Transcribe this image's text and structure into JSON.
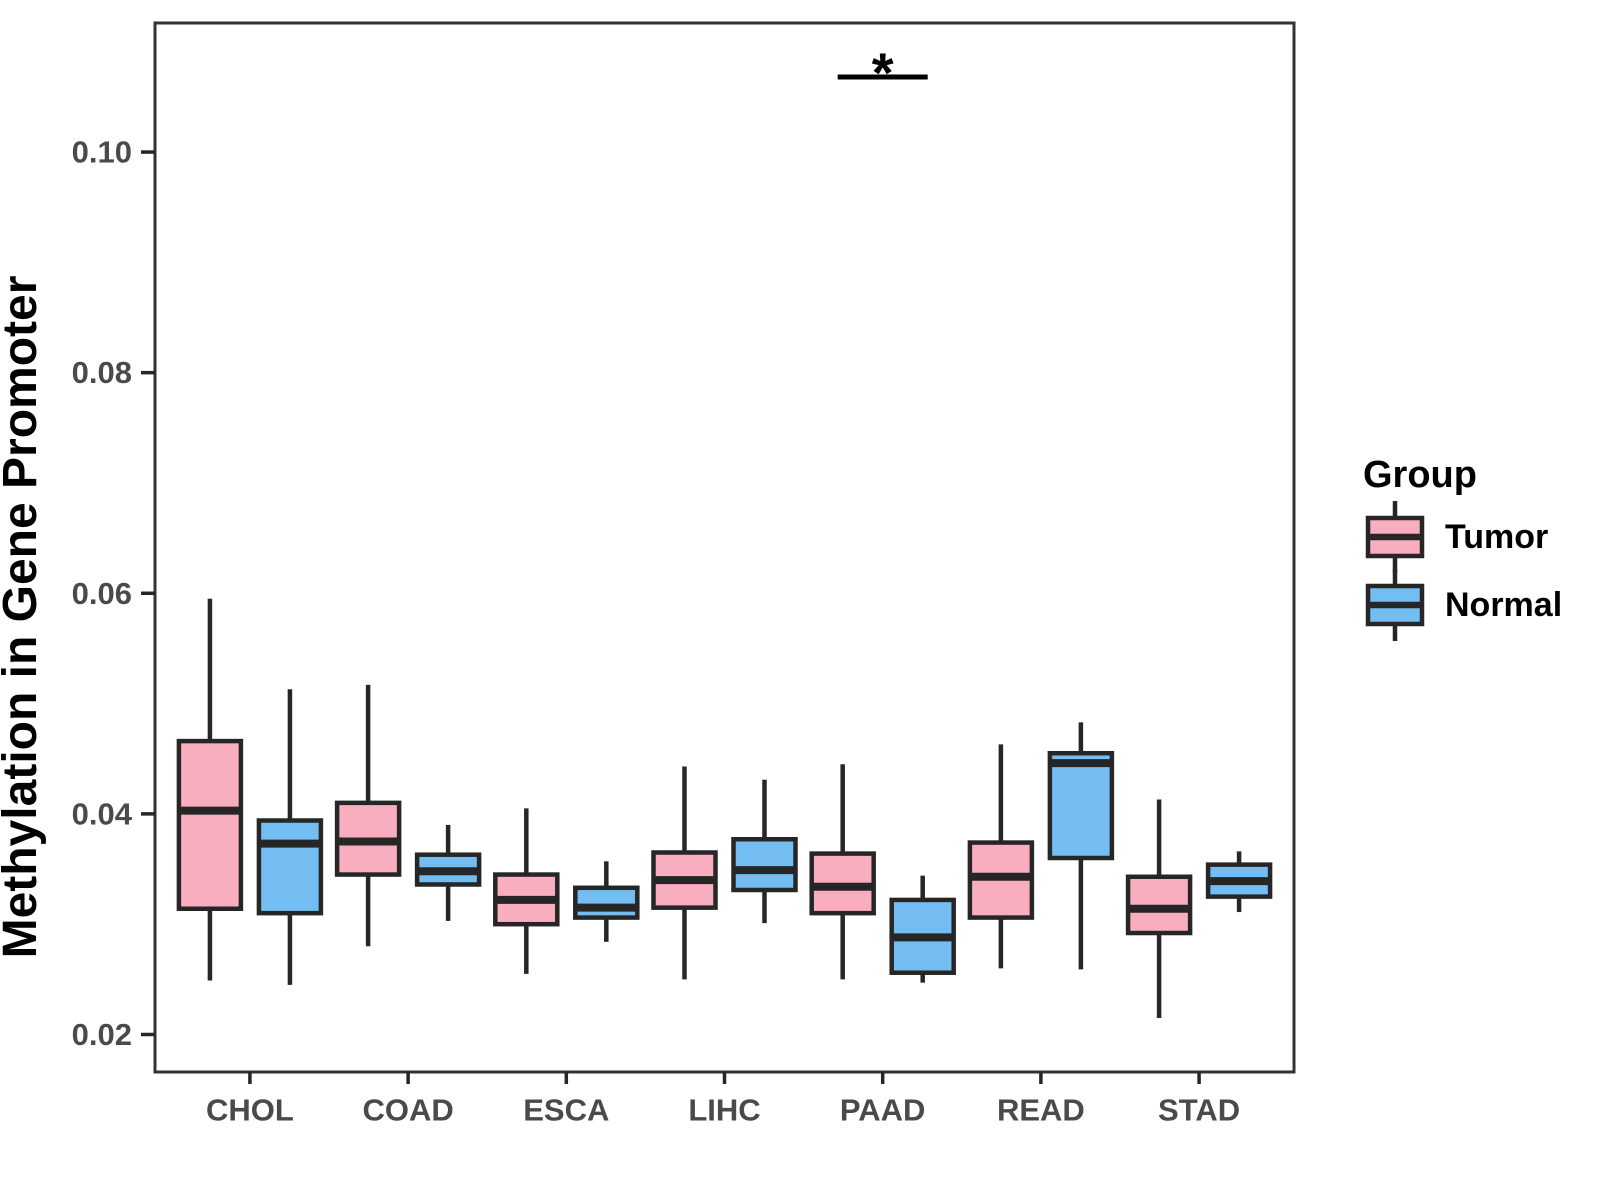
{
  "chart_data": {
    "type": "boxplot",
    "title": "",
    "xlabel": "",
    "ylabel": "Methylation in Gene Promoter",
    "categories": [
      "CHOL",
      "COAD",
      "ESCA",
      "LIHC",
      "PAAD",
      "READ",
      "STAD"
    ],
    "y_ticks": [
      0.02,
      0.04,
      0.06,
      0.08,
      0.1
    ],
    "ylim": [
      0.0166,
      0.1117
    ],
    "grid": false,
    "legend": {
      "title": "Group",
      "position": "right",
      "items": [
        {
          "label": "Tumor",
          "color": "#F9AEC0"
        },
        {
          "label": "Normal",
          "color": "#73BDF2"
        }
      ]
    },
    "series": [
      {
        "name": "Tumor",
        "color": "#F9AEC0",
        "boxes": [
          {
            "category": "CHOL",
            "low": 0.0249,
            "q1": 0.0314,
            "median": 0.0403,
            "q3": 0.0466,
            "high": 0.0595
          },
          {
            "category": "COAD",
            "low": 0.028,
            "q1": 0.0345,
            "median": 0.0375,
            "q3": 0.041,
            "high": 0.0517
          },
          {
            "category": "ESCA",
            "low": 0.0255,
            "q1": 0.03,
            "median": 0.0322,
            "q3": 0.0345,
            "high": 0.0405
          },
          {
            "category": "LIHC",
            "low": 0.025,
            "q1": 0.0315,
            "median": 0.034,
            "q3": 0.0365,
            "high": 0.0443
          },
          {
            "category": "PAAD",
            "low": 0.025,
            "q1": 0.031,
            "median": 0.0334,
            "q3": 0.0364,
            "high": 0.0445
          },
          {
            "category": "READ",
            "low": 0.026,
            "q1": 0.0306,
            "median": 0.0343,
            "q3": 0.0374,
            "high": 0.0463
          },
          {
            "category": "STAD",
            "low": 0.0215,
            "q1": 0.0292,
            "median": 0.0314,
            "q3": 0.0343,
            "high": 0.0413
          }
        ]
      },
      {
        "name": "Normal",
        "color": "#73BDF2",
        "boxes": [
          {
            "category": "CHOL",
            "low": 0.0245,
            "q1": 0.031,
            "median": 0.0373,
            "q3": 0.0394,
            "high": 0.0513
          },
          {
            "category": "COAD",
            "low": 0.0303,
            "q1": 0.0336,
            "median": 0.0348,
            "q3": 0.0363,
            "high": 0.039
          },
          {
            "category": "ESCA",
            "low": 0.0284,
            "q1": 0.0306,
            "median": 0.0315,
            "q3": 0.0333,
            "high": 0.0357
          },
          {
            "category": "LIHC",
            "low": 0.0301,
            "q1": 0.0331,
            "median": 0.0349,
            "q3": 0.0377,
            "high": 0.0431
          },
          {
            "category": "PAAD",
            "low": 0.0247,
            "q1": 0.0256,
            "median": 0.0288,
            "q3": 0.0322,
            "high": 0.0344
          },
          {
            "category": "READ",
            "low": 0.0259,
            "q1": 0.036,
            "median": 0.0446,
            "q3": 0.0455,
            "high": 0.0483
          },
          {
            "category": "STAD",
            "low": 0.0311,
            "q1": 0.0325,
            "median": 0.0339,
            "q3": 0.0354,
            "high": 0.0366
          }
        ]
      }
    ],
    "annotation": {
      "label": "*",
      "category": "PAAD",
      "line_y": 0.1068
    },
    "colors": {
      "box_border": "#262626",
      "axis_text": "#4A4A4A",
      "panel_border": "#333333",
      "background": "#FFFFFF",
      "annotation": "#000000"
    }
  }
}
